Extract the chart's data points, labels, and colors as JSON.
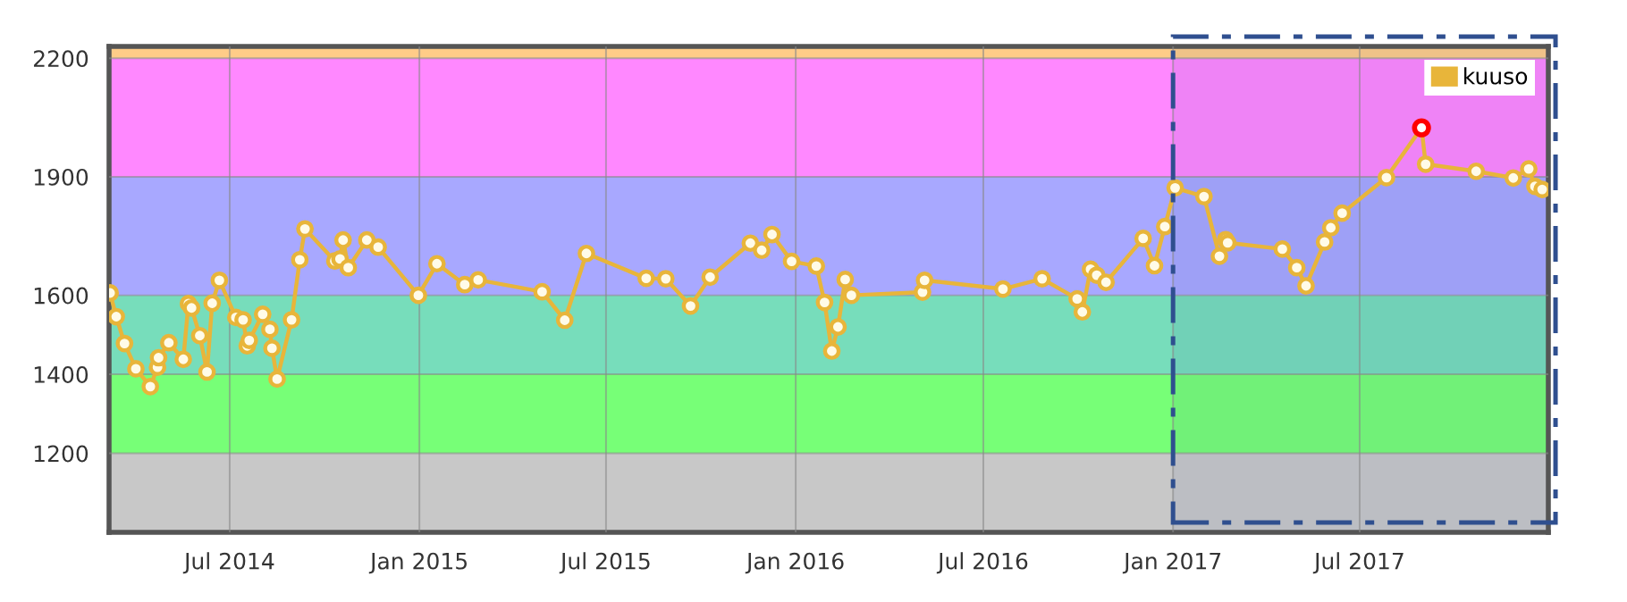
{
  "chart_data": {
    "type": "line",
    "x": [
      "2014-03-07",
      "2014-03-13",
      "2014-03-21",
      "2014-04-01",
      "2014-04-15",
      "2014-04-22",
      "2014-04-23",
      "2014-05-03",
      "2014-05-17",
      "2014-05-22",
      "2014-05-25",
      "2014-06-02",
      "2014-06-09",
      "2014-06-14",
      "2014-06-21",
      "2014-07-07",
      "2014-07-14",
      "2014-07-18",
      "2014-07-20",
      "2014-08-02",
      "2014-08-09",
      "2014-08-11",
      "2014-08-16",
      "2014-08-30",
      "2014-09-07",
      "2014-09-12",
      "2014-10-11",
      "2014-10-16",
      "2014-10-19",
      "2014-10-24",
      "2014-11-11",
      "2014-11-22",
      "2014-12-31",
      "2015-01-18",
      "2015-02-14",
      "2015-02-27",
      "2015-04-30",
      "2015-05-22",
      "2015-06-12",
      "2015-08-09",
      "2015-08-28",
      "2015-09-21",
      "2015-10-10",
      "2015-11-18",
      "2015-11-29",
      "2015-12-09",
      "2015-12-28",
      "2016-01-21",
      "2016-01-29",
      "2016-02-05",
      "2016-02-11",
      "2016-02-18",
      "2016-02-24",
      "2016-05-03",
      "2016-05-05",
      "2016-07-20",
      "2016-08-27",
      "2016-09-30",
      "2016-10-05",
      "2016-10-13",
      "2016-10-19",
      "2016-10-28",
      "2016-12-03",
      "2016-12-14",
      "2016-12-24",
      "2017-01-03",
      "2017-01-31",
      "2017-02-15",
      "2017-02-21",
      "2017-02-23",
      "2017-04-17",
      "2017-05-01",
      "2017-05-10",
      "2017-05-28",
      "2017-06-03",
      "2017-06-14",
      "2017-07-27",
      "2017-08-30",
      "2017-09-03",
      "2017-10-22",
      "2017-11-27",
      "2017-12-12",
      "2017-12-18",
      "2017-12-25"
    ],
    "series": [
      {
        "name": "kuuso",
        "color": "#e8b53a",
        "marker": "circle",
        "values": [
          1606,
          1546,
          1478,
          1414,
          1369,
          1418,
          1442,
          1480,
          1438,
          1579,
          1568,
          1498,
          1406,
          1580,
          1638,
          1544,
          1538,
          1472,
          1486,
          1552,
          1514,
          1466,
          1388,
          1538,
          1690,
          1768,
          1687,
          1692,
          1740,
          1670,
          1740,
          1722,
          1600,
          1680,
          1627,
          1639,
          1609,
          1537,
          1706,
          1643,
          1642,
          1573,
          1646,
          1732,
          1714,
          1754,
          1686,
          1674,
          1582,
          1459,
          1520,
          1640,
          1600,
          1608,
          1638,
          1616,
          1642,
          1591,
          1558,
          1666,
          1651,
          1633,
          1744,
          1675,
          1774,
          1872,
          1850,
          1699,
          1741,
          1733,
          1717,
          1670,
          1624,
          1735,
          1771,
          1808,
          1898,
          2024,
          1932,
          1914,
          1897,
          1920,
          1876,
          1868
        ]
      },
      {
        "type": "scatter",
        "color": "#ff0000",
        "marker": "circle",
        "x": [
          "2017-08-30"
        ],
        "values": [
          2024
        ]
      }
    ],
    "xlim": [
      "2014-03-06",
      "2017-12-31"
    ],
    "xticks": [
      {
        "value": "2014-07-01",
        "label": "Jul 2014"
      },
      {
        "value": "2015-01-01",
        "label": "Jan 2015"
      },
      {
        "value": "2015-07-01",
        "label": "Jul 2015"
      },
      {
        "value": "2016-01-01",
        "label": "Jan 2016"
      },
      {
        "value": "2016-07-01",
        "label": "Jul 2016"
      },
      {
        "value": "2017-01-01",
        "label": "Jan 2017"
      },
      {
        "value": "2017-07-01",
        "label": "Jul 2017"
      }
    ],
    "ylim": [
      1000,
      2230
    ],
    "yticks": [
      1200,
      1400,
      1600,
      1900,
      2200
    ],
    "bands": [
      {
        "axis": "y",
        "from": 1000,
        "to": 1200,
        "color": "#c8c8c8"
      },
      {
        "axis": "y",
        "from": 1200,
        "to": 1400,
        "color": "#77ff77"
      },
      {
        "axis": "y",
        "from": 1400,
        "to": 1600,
        "color": "#77ddbb"
      },
      {
        "axis": "y",
        "from": 1600,
        "to": 1900,
        "color": "#a8a8ff"
      },
      {
        "axis": "y",
        "from": 1900,
        "to": 2200,
        "color": "#ff88ff"
      },
      {
        "axis": "y",
        "from": 2200,
        "to": 2230,
        "color": "#ffcc88"
      },
      {
        "axis": "x",
        "from": "2017-01-01",
        "to": "2017-12-31",
        "color": "#2f4f8f"
      }
    ],
    "grid": true,
    "legend": "top right",
    "line_style": "solid"
  }
}
